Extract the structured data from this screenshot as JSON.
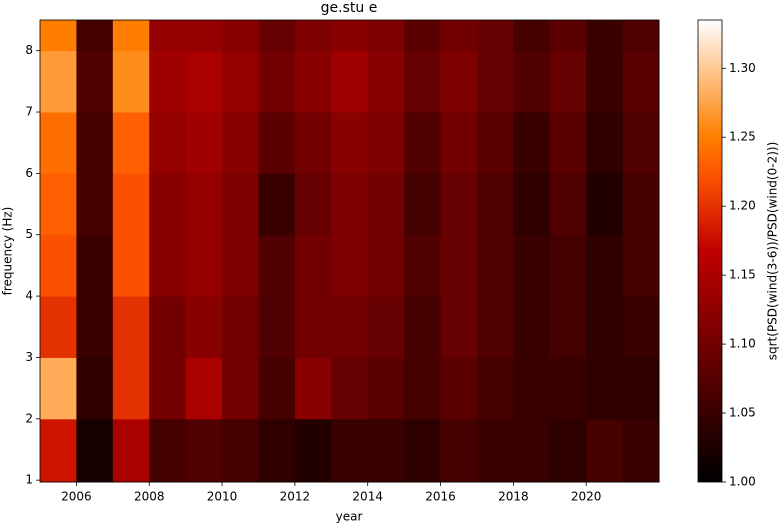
{
  "chart_data": {
    "type": "heatmap",
    "title": "ge.stu e",
    "xlabel": "year",
    "ylabel": "frequency (Hz)",
    "colorbar_label": "sqrt(PSD(wind(3-6))/PSD(wind(0-2)))",
    "colormap": "gist_heat",
    "xbins": [
      2005,
      2006,
      2007,
      2008,
      2009,
      2010,
      2011,
      2012,
      2013,
      2014,
      2015,
      2016,
      2017,
      2018,
      2019,
      2020,
      2021,
      2022
    ],
    "ybins": [
      0.97,
      2,
      3,
      4,
      5,
      6,
      7,
      8,
      8.5
    ],
    "z": [
      [
        1.18,
        1.02,
        1.15,
        1.06,
        1.07,
        1.06,
        1.04,
        1.03,
        1.05,
        1.05,
        1.04,
        1.06,
        1.05,
        1.05,
        1.04,
        1.06,
        1.05
      ],
      [
        1.28,
        1.04,
        1.2,
        1.1,
        1.15,
        1.1,
        1.06,
        1.12,
        1.09,
        1.08,
        1.06,
        1.08,
        1.06,
        1.05,
        1.05,
        1.04,
        1.04
      ],
      [
        1.2,
        1.05,
        1.2,
        1.1,
        1.12,
        1.1,
        1.07,
        1.1,
        1.1,
        1.09,
        1.06,
        1.09,
        1.07,
        1.05,
        1.06,
        1.04,
        1.05
      ],
      [
        1.22,
        1.05,
        1.22,
        1.12,
        1.13,
        1.11,
        1.07,
        1.1,
        1.11,
        1.1,
        1.07,
        1.09,
        1.07,
        1.05,
        1.06,
        1.04,
        1.06
      ],
      [
        1.23,
        1.06,
        1.22,
        1.12,
        1.13,
        1.11,
        1.05,
        1.09,
        1.11,
        1.1,
        1.06,
        1.09,
        1.07,
        1.04,
        1.07,
        1.03,
        1.06
      ],
      [
        1.24,
        1.06,
        1.23,
        1.13,
        1.14,
        1.12,
        1.08,
        1.1,
        1.12,
        1.11,
        1.07,
        1.1,
        1.08,
        1.05,
        1.08,
        1.04,
        1.07
      ],
      [
        1.27,
        1.07,
        1.26,
        1.14,
        1.15,
        1.13,
        1.1,
        1.12,
        1.14,
        1.12,
        1.09,
        1.11,
        1.09,
        1.07,
        1.09,
        1.05,
        1.08
      ],
      [
        1.25,
        1.06,
        1.25,
        1.13,
        1.13,
        1.12,
        1.09,
        1.11,
        1.12,
        1.11,
        1.08,
        1.1,
        1.09,
        1.06,
        1.08,
        1.05,
        1.07
      ]
    ],
    "xlim": [
      2005,
      2022
    ],
    "ylim": [
      0.97,
      8.5
    ],
    "xticks": [
      2006,
      2008,
      2010,
      2012,
      2014,
      2016,
      2018,
      2020
    ],
    "yticks": [
      1,
      2,
      3,
      4,
      5,
      6,
      7,
      8
    ],
    "clim": [
      1.0,
      1.335
    ],
    "cticks": [
      {
        "value": 1.0,
        "label": "1.00"
      },
      {
        "value": 1.05,
        "label": "1.05"
      },
      {
        "value": 1.1,
        "label": "1.10"
      },
      {
        "value": 1.15,
        "label": "1.15"
      },
      {
        "value": 1.2,
        "label": "1.20"
      },
      {
        "value": 1.25,
        "label": "1.25"
      },
      {
        "value": 1.3,
        "label": "1.30"
      }
    ]
  }
}
